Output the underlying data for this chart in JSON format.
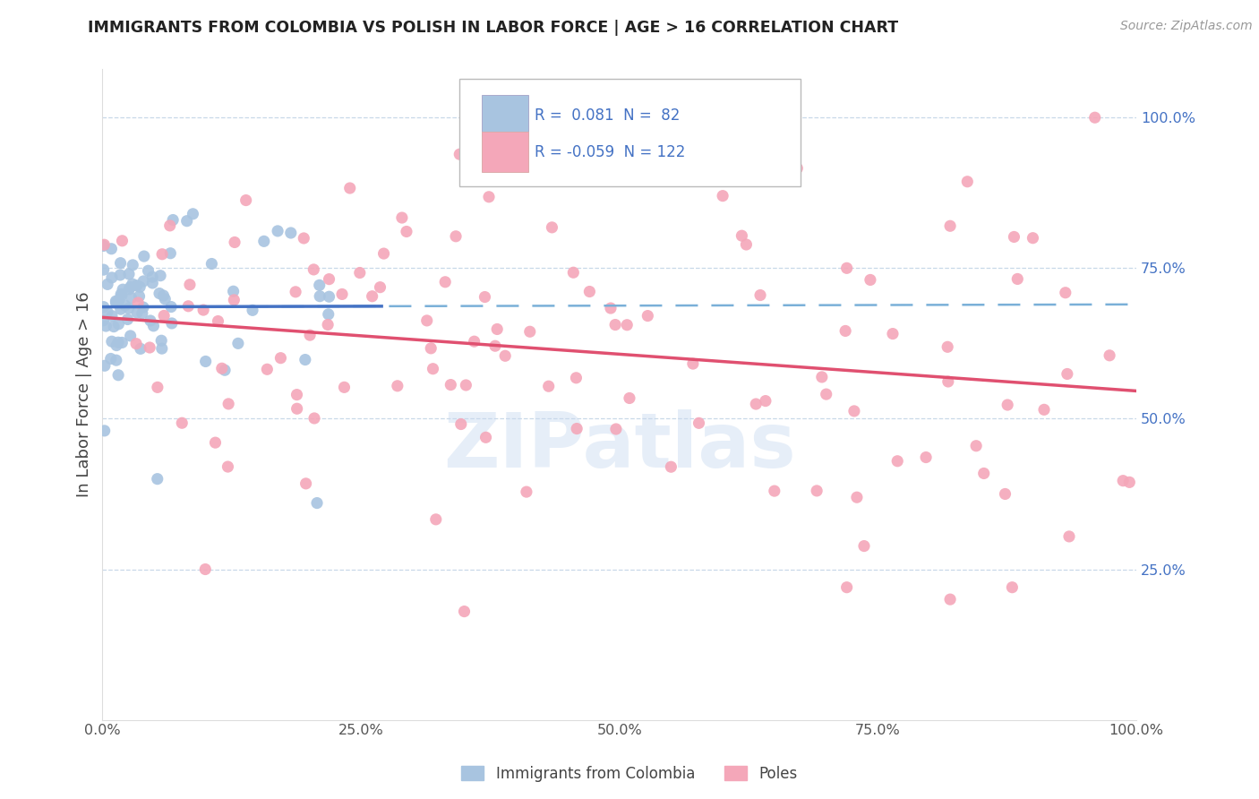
{
  "title": "IMMIGRANTS FROM COLOMBIA VS POLISH IN LABOR FORCE | AGE > 16 CORRELATION CHART",
  "source_text": "Source: ZipAtlas.com",
  "ylabel": "In Labor Force | Age > 16",
  "legend_labels": [
    "Immigrants from Colombia",
    "Poles"
  ],
  "colombia_R": 0.081,
  "colombia_N": 82,
  "poles_R": -0.059,
  "poles_N": 122,
  "colombia_color": "#a8c4e0",
  "poles_color": "#f4a7b9",
  "colombia_line_color": "#4472c4",
  "colombia_dash_color": "#7ab0d8",
  "poles_line_color": "#e05070",
  "watermark": "ZIPatlas",
  "legend_text_color": "#4472c4",
  "right_tick_color": "#4472c4",
  "xlim": [
    0.0,
    1.0
  ],
  "ylim": [
    0.0,
    1.08
  ],
  "x_ticks": [
    0.0,
    0.25,
    0.5,
    0.75,
    1.0
  ],
  "x_tick_labels": [
    "0.0%",
    "25.0%",
    "50.0%",
    "75.0%",
    "100.0%"
  ],
  "y_ticks_right": [
    0.25,
    0.5,
    0.75,
    1.0
  ],
  "y_tick_labels_right": [
    "25.0%",
    "50.0%",
    "75.0%",
    "100.0%"
  ],
  "grid_color": "#c8d8e8",
  "grid_style": "--"
}
